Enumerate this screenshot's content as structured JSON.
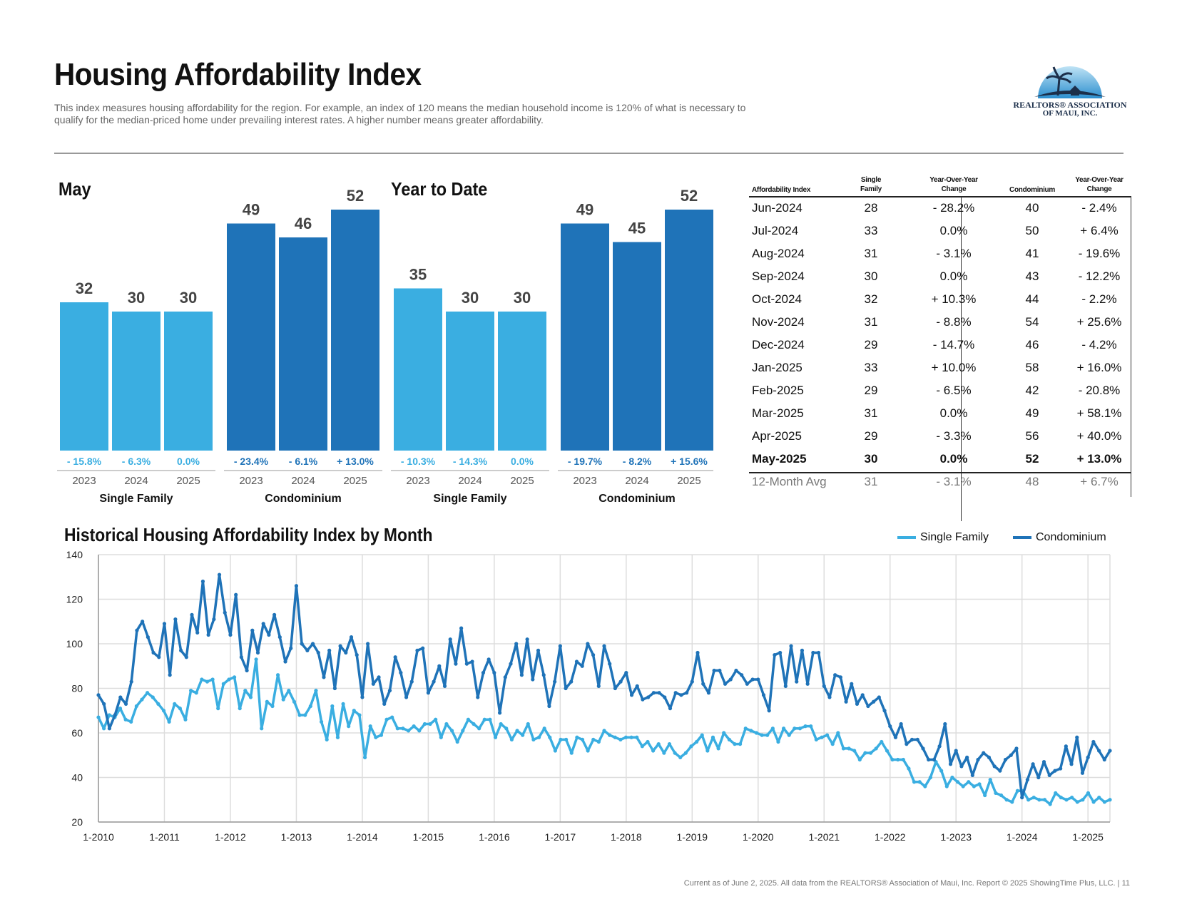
{
  "header": {
    "title": "Housing Affordability Index",
    "subtitle": "This index measures housing affordability for the region. For example, an index of 120 means the median household income is 120% of what is necessary to qualify for the median-priced home under prevailing interest rates. A higher number means greater affordability."
  },
  "logo": {
    "line1": "REALTORS® ASSOCIATION",
    "line2": "OF MAUI, INC."
  },
  "colors": {
    "single_family": "#3aaee1",
    "condominium": "#1f73b8",
    "text_dark": "#111111",
    "grid": "#dddddd"
  },
  "chart_data": [
    {
      "type": "bar",
      "title": "May",
      "groups": [
        {
          "name": "Single Family",
          "categories": [
            "2023",
            "2024",
            "2025"
          ],
          "values": [
            32,
            30,
            30
          ],
          "changes": [
            "- 15.8%",
            "- 6.3%",
            "0.0%"
          ]
        },
        {
          "name": "Condominium",
          "categories": [
            "2023",
            "2024",
            "2025"
          ],
          "values": [
            49,
            46,
            52
          ],
          "changes": [
            "- 23.4%",
            "- 6.1%",
            "+ 13.0%"
          ]
        }
      ]
    },
    {
      "type": "bar",
      "title": "Year to Date",
      "groups": [
        {
          "name": "Single Family",
          "categories": [
            "2023",
            "2024",
            "2025"
          ],
          "values": [
            35,
            30,
            30
          ],
          "changes": [
            "- 10.3%",
            "- 14.3%",
            "0.0%"
          ]
        },
        {
          "name": "Condominium",
          "categories": [
            "2023",
            "2024",
            "2025"
          ],
          "values": [
            49,
            45,
            52
          ],
          "changes": [
            "- 19.7%",
            "- 8.2%",
            "+ 15.6%"
          ]
        }
      ]
    },
    {
      "type": "table",
      "headers": [
        "Affordability Index",
        "Single Family",
        "Year-Over-Year Change",
        "Condominium",
        "Year-Over-Year Change"
      ],
      "rows": [
        [
          "Jun-2024",
          "28",
          "- 28.2%",
          "40",
          "- 2.4%"
        ],
        [
          "Jul-2024",
          "33",
          "0.0%",
          "50",
          "+ 6.4%"
        ],
        [
          "Aug-2024",
          "31",
          "- 3.1%",
          "41",
          "- 19.6%"
        ],
        [
          "Sep-2024",
          "30",
          "0.0%",
          "43",
          "- 12.2%"
        ],
        [
          "Oct-2024",
          "32",
          "+ 10.3%",
          "44",
          "- 2.2%"
        ],
        [
          "Nov-2024",
          "31",
          "- 8.8%",
          "54",
          "+ 25.6%"
        ],
        [
          "Dec-2024",
          "29",
          "- 14.7%",
          "46",
          "- 4.2%"
        ],
        [
          "Jan-2025",
          "33",
          "+ 10.0%",
          "58",
          "+ 16.0%"
        ],
        [
          "Feb-2025",
          "29",
          "- 6.5%",
          "42",
          "- 20.8%"
        ],
        [
          "Mar-2025",
          "31",
          "0.0%",
          "49",
          "+ 58.1%"
        ],
        [
          "Apr-2025",
          "29",
          "- 3.3%",
          "56",
          "+ 40.0%"
        ],
        [
          "May-2025",
          "30",
          "0.0%",
          "52",
          "+ 13.0%"
        ]
      ],
      "average": [
        "12-Month Avg",
        "31",
        "- 3.1%",
        "48",
        "+ 6.7%"
      ]
    },
    {
      "type": "line",
      "title": "Historical Housing Affordability Index by Month",
      "x_labels": [
        "1-2010",
        "1-2011",
        "1-2012",
        "1-2013",
        "1-2014",
        "1-2015",
        "1-2016",
        "1-2017",
        "1-2018",
        "1-2019",
        "1-2020",
        "1-2021",
        "1-2022",
        "1-2023",
        "1-2024",
        "1-2025"
      ],
      "ylim": [
        20,
        140
      ],
      "yticks": [
        20,
        40,
        60,
        80,
        100,
        120,
        140
      ],
      "x_start": "2010-01",
      "series": [
        {
          "name": "Single Family",
          "values": [
            67,
            62,
            68,
            67,
            71,
            66,
            65,
            72,
            75,
            78,
            76,
            73,
            70,
            65,
            73,
            71,
            66,
            79,
            78,
            84,
            83,
            84,
            71,
            82,
            84,
            85,
            71,
            79,
            76,
            93,
            62,
            74,
            72,
            86,
            75,
            79,
            74,
            68,
            68,
            72,
            79,
            65,
            57,
            72,
            58,
            73,
            63,
            70,
            68,
            49,
            63,
            58,
            59,
            66,
            67,
            62,
            62,
            61,
            63,
            61,
            64,
            64,
            66,
            58,
            64,
            61,
            56,
            61,
            66,
            64,
            62,
            66,
            66,
            58,
            64,
            62,
            57,
            61,
            59,
            64,
            57,
            58,
            62,
            58,
            52,
            57,
            57,
            51,
            58,
            57,
            52,
            57,
            56,
            61,
            59,
            58,
            57,
            58,
            58,
            58,
            54,
            56,
            52,
            55,
            51,
            55,
            51,
            49,
            51,
            54,
            56,
            59,
            52,
            58,
            53,
            60,
            57,
            55,
            55,
            62,
            61,
            60,
            59,
            59,
            62,
            56,
            62,
            59,
            62,
            62,
            63,
            63,
            57,
            58,
            59,
            55,
            60,
            53,
            53,
            52,
            48,
            51,
            51,
            53,
            56,
            52,
            48,
            48,
            48,
            44,
            38,
            38,
            36,
            40,
            47,
            43,
            36,
            40,
            38,
            36,
            38,
            36,
            37,
            32,
            39,
            33,
            32,
            30,
            29,
            34,
            34,
            30,
            31,
            30,
            30,
            28,
            33,
            31,
            30,
            31,
            29,
            30,
            33,
            29,
            31,
            29,
            30
          ],
          "color": "#3aaee1"
        },
        {
          "name": "Condominium",
          "values": [
            77,
            73,
            62,
            68,
            76,
            73,
            83,
            106,
            110,
            103,
            96,
            94,
            109,
            86,
            111,
            97,
            94,
            113,
            105,
            128,
            104,
            111,
            131,
            114,
            104,
            122,
            94,
            88,
            106,
            96,
            109,
            104,
            113,
            103,
            92,
            98,
            126,
            100,
            97,
            100,
            96,
            85,
            97,
            80,
            99,
            96,
            103,
            95,
            76,
            100,
            82,
            85,
            73,
            79,
            94,
            87,
            76,
            83,
            97,
            98,
            78,
            83,
            90,
            81,
            102,
            91,
            107,
            91,
            92,
            76,
            87,
            93,
            87,
            69,
            85,
            91,
            100,
            86,
            102,
            84,
            97,
            86,
            72,
            83,
            99,
            80,
            83,
            92,
            90,
            100,
            95,
            81,
            99,
            91,
            80,
            83,
            87,
            77,
            81,
            75,
            76,
            78,
            78,
            76,
            71,
            78,
            77,
            78,
            83,
            96,
            82,
            78,
            88,
            88,
            82,
            84,
            88,
            86,
            82,
            84,
            84,
            77,
            70,
            95,
            96,
            81,
            99,
            83,
            97,
            82,
            96,
            96,
            81,
            76,
            86,
            85,
            74,
            82,
            73,
            77,
            72,
            74,
            76,
            70,
            63,
            58,
            64,
            55,
            57,
            57,
            53,
            48,
            48,
            54,
            64,
            46,
            52,
            45,
            49,
            41,
            48,
            51,
            49,
            45,
            43,
            48,
            50,
            53,
            31,
            39,
            46,
            40,
            47,
            41,
            43,
            44,
            54,
            46,
            58,
            42,
            49,
            56,
            52,
            48,
            52
          ],
          "color": "#1f73b8"
        }
      ]
    }
  ],
  "legend": {
    "single_family": "Single Family",
    "condominium": "Condominium"
  },
  "footer": "Current as of June 2, 2025. All data from the REALTORS® Association of Maui, Inc. Report © 2025 ShowingTime Plus, LLC.  |  11"
}
